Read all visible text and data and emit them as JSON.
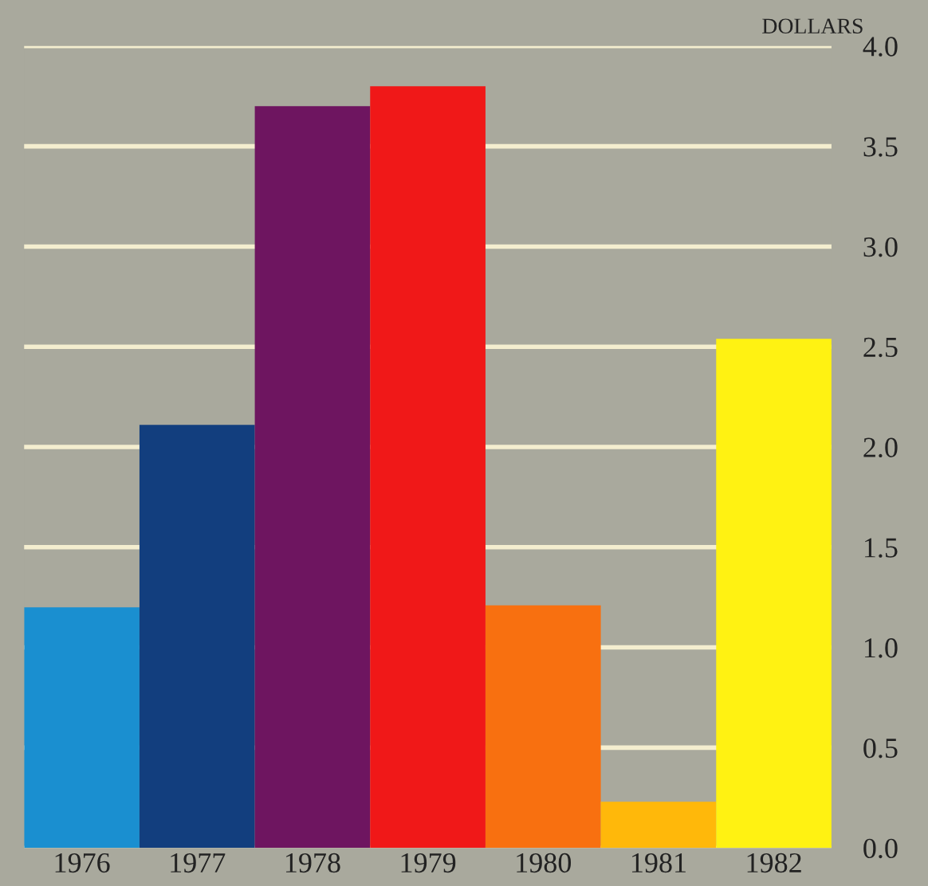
{
  "chart_data": {
    "type": "bar",
    "ylabel": "DOLLARS",
    "categories": [
      "1976",
      "1977",
      "1978",
      "1979",
      "1980",
      "1981",
      "1982"
    ],
    "values": [
      1.2,
      2.11,
      3.7,
      3.8,
      1.21,
      0.23,
      2.54
    ],
    "colors": [
      "#1a8fd0",
      "#123e7e",
      "#6e1560",
      "#f01818",
      "#f87010",
      "#ffb80a",
      "#fff212"
    ],
    "ylim": [
      0,
      4
    ],
    "yticks": [
      {
        "value": 0,
        "label": "0.0"
      },
      {
        "value": 0.5,
        "label": "0.5"
      },
      {
        "value": 1,
        "label": "1.0"
      },
      {
        "value": 1.5,
        "label": "1.5"
      },
      {
        "value": 2,
        "label": "2.0"
      },
      {
        "value": 2.5,
        "label": "2.5"
      },
      {
        "value": 3,
        "label": "3.0"
      },
      {
        "value": 3.5,
        "label": "3.5"
      },
      {
        "value": 4,
        "label": "4.0"
      }
    ],
    "grid": "y"
  }
}
